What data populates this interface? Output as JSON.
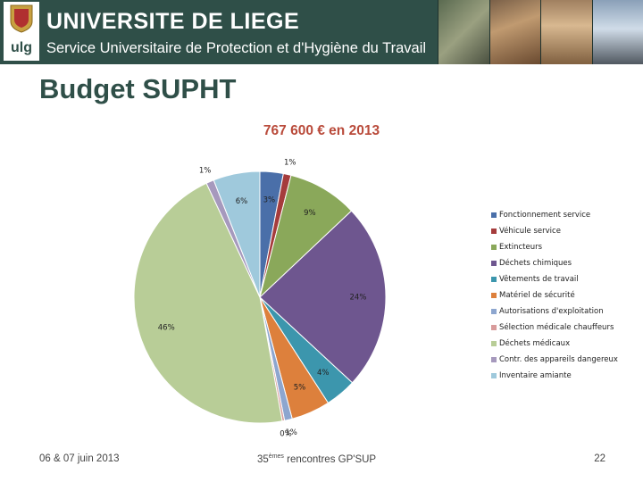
{
  "header": {
    "institution": "UNIVERSITE DE LIEGE",
    "service": "Service Universitaire de Protection et d'Hygiène du Travail",
    "logo_text": "ulg"
  },
  "slide": {
    "title": "Budget SUPHT"
  },
  "chart_data": {
    "type": "pie",
    "title": "767 600 € en 2013",
    "start": "12 o'clock, clockwise",
    "legend_position": "right",
    "slices": [
      {
        "name": "Fonctionnement service",
        "value": 3,
        "label": "3%",
        "color": "#4a6fa9"
      },
      {
        "name": "Véhicule service",
        "value": 1,
        "label": "1%",
        "color": "#a53c3c"
      },
      {
        "name": "Extincteurs",
        "value": 9,
        "label": "9%",
        "color": "#8aa85a"
      },
      {
        "name": "Déchets chimiques",
        "value": 24,
        "label": "24%",
        "color": "#6e568f"
      },
      {
        "name": "Vêtements de travail",
        "value": 4,
        "label": "4%",
        "color": "#3c96ad"
      },
      {
        "name": "Matériel de sécurité",
        "value": 5,
        "label": "5%",
        "color": "#dd803c"
      },
      {
        "name": "Autorisations d'exploitation",
        "value": 1,
        "label": "1%",
        "color": "#8da6cf"
      },
      {
        "name": "Sélection médicale chauffeurs",
        "value": 0.3,
        "label": "0%",
        "color": "#d89b9b"
      },
      {
        "name": "Déchets médicaux",
        "value": 46,
        "label": "46%",
        "color": "#b8cd97"
      },
      {
        "name": "Contr. des appareils dangereux",
        "value": 1,
        "label": "1%",
        "color": "#a699bd"
      },
      {
        "name": "Inventaire amiante",
        "value": 6,
        "label": "6%",
        "color": "#9fc9dc"
      }
    ]
  },
  "footer": {
    "date": "06 & 07 juin 2013",
    "event_number": "35",
    "event_suffix": "èmes",
    "event_rest": " rencontres GP'SUP",
    "page": "22"
  }
}
